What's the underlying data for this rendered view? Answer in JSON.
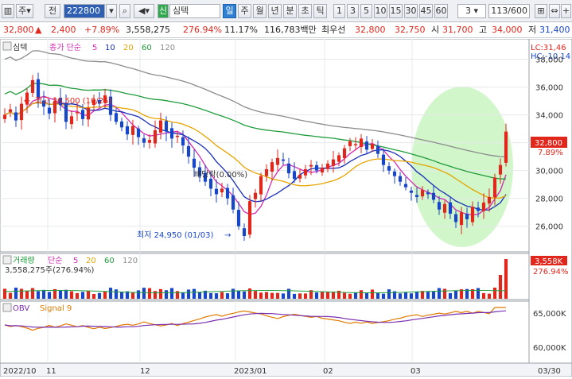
{
  "toolbar": {
    "code": "222800",
    "type_label": "주",
    "prefix_label": "전",
    "stock_name": "심텍",
    "sin_badge": "신",
    "periods": [
      "일",
      "주",
      "월",
      "년",
      "분",
      "초",
      "틱"
    ],
    "active_period": "일",
    "intervals": [
      "1",
      "3",
      "5",
      "10",
      "15",
      "30",
      "45",
      "60"
    ],
    "count_value": "3",
    "range_value": "113",
    "range_total": "/600"
  },
  "quote": {
    "price": "32,800",
    "arrow": "▲",
    "change": "2,400",
    "change_pct": "+7.89%",
    "volume": "3,558,275",
    "volume_pct": "276.94%",
    "turnover_pct": "11.17%",
    "amount": "116,783백만",
    "best_ask_label": "최우선",
    "best_ask": "32,800",
    "best_bid": "32,750",
    "open_label": "시",
    "open": "31,700",
    "high_label": "고",
    "high": "34,000",
    "low_label": "저",
    "low": "31,400"
  },
  "price_panel": {
    "title": "심텍",
    "legend_main": "종가 단순",
    "ma_periods": [
      "5",
      "10",
      "20",
      "60",
      "120"
    ],
    "ma_colors": [
      "#d22bb3",
      "#1a2fb8",
      "#e6a400",
      "#1f9c3a",
      "#8c8c8c"
    ],
    "lc": "LC:31,46",
    "hc": "HC:-10,14",
    "y_ticks": [
      "38,000",
      "36,000",
      "34,000",
      "32,000",
      "30,000",
      "28,000",
      "26,000"
    ],
    "price_tag": "32,800",
    "pct_tag": "7.89%",
    "high_annot": "최고 36,500 (10/25)",
    "low_annot": "최저 24,950 (01/03)",
    "dividend_annot": "배당락(0.00%)"
  },
  "volume_panel": {
    "title": "거래량",
    "legend": "단순",
    "ma_periods": [
      "5",
      "20",
      "60",
      "120"
    ],
    "ma_colors": [
      "#d22bb3",
      "#e6a400",
      "#1f9c3a",
      "#8c8c8c"
    ],
    "value_text": "3,558,275주(276.94%)",
    "vol_tag": "3,558K",
    "pct_tag": "276.94%"
  },
  "obv_panel": {
    "title": "OBV",
    "signal": "Signal 9",
    "y_ticks": [
      "65,000K",
      "60,000K"
    ]
  },
  "x_axis": [
    "2022/10",
    "11",
    "12",
    "2023/01",
    "02",
    "03",
    "03/30"
  ],
  "colors": {
    "up": "#e1261c",
    "down": "#1846c8",
    "highlight": "#c8f5c0"
  },
  "chart_data": {
    "type": "candlestick",
    "start_date": "2022-10-04",
    "end_date": "2023-03-30",
    "ohlc_close_series": [
      34000,
      34400,
      33600,
      34800,
      35600,
      36500,
      35200,
      34600,
      34100,
      35000,
      34700,
      33500,
      33900,
      34200,
      33700,
      34500,
      35100,
      34800,
      35400,
      34000,
      33500,
      33100,
      32600,
      33200,
      32400,
      32000,
      32200,
      32900,
      33600,
      32800,
      32300,
      32500,
      31800,
      31000,
      30200,
      29600,
      29200,
      28700,
      28300,
      28700,
      28000,
      27200,
      26000,
      25300,
      27800,
      28400,
      29600,
      30100,
      30600,
      30900,
      30700,
      29800,
      29400,
      29700,
      30100,
      30400,
      30000,
      30200,
      30500,
      30800,
      31100,
      31600,
      32100,
      31900,
      32300,
      31500,
      31900,
      31200,
      30400,
      30000,
      29600,
      29200,
      28800,
      28400,
      28100,
      28600,
      28300,
      27900,
      27200,
      27600,
      26900,
      26300,
      27000,
      26500,
      27400,
      27100,
      27700,
      28100,
      29500,
      30400,
      32800
    ],
    "ma_labels": [
      "5",
      "10",
      "20",
      "60",
      "120"
    ],
    "ylim": [
      24500,
      39000
    ]
  }
}
